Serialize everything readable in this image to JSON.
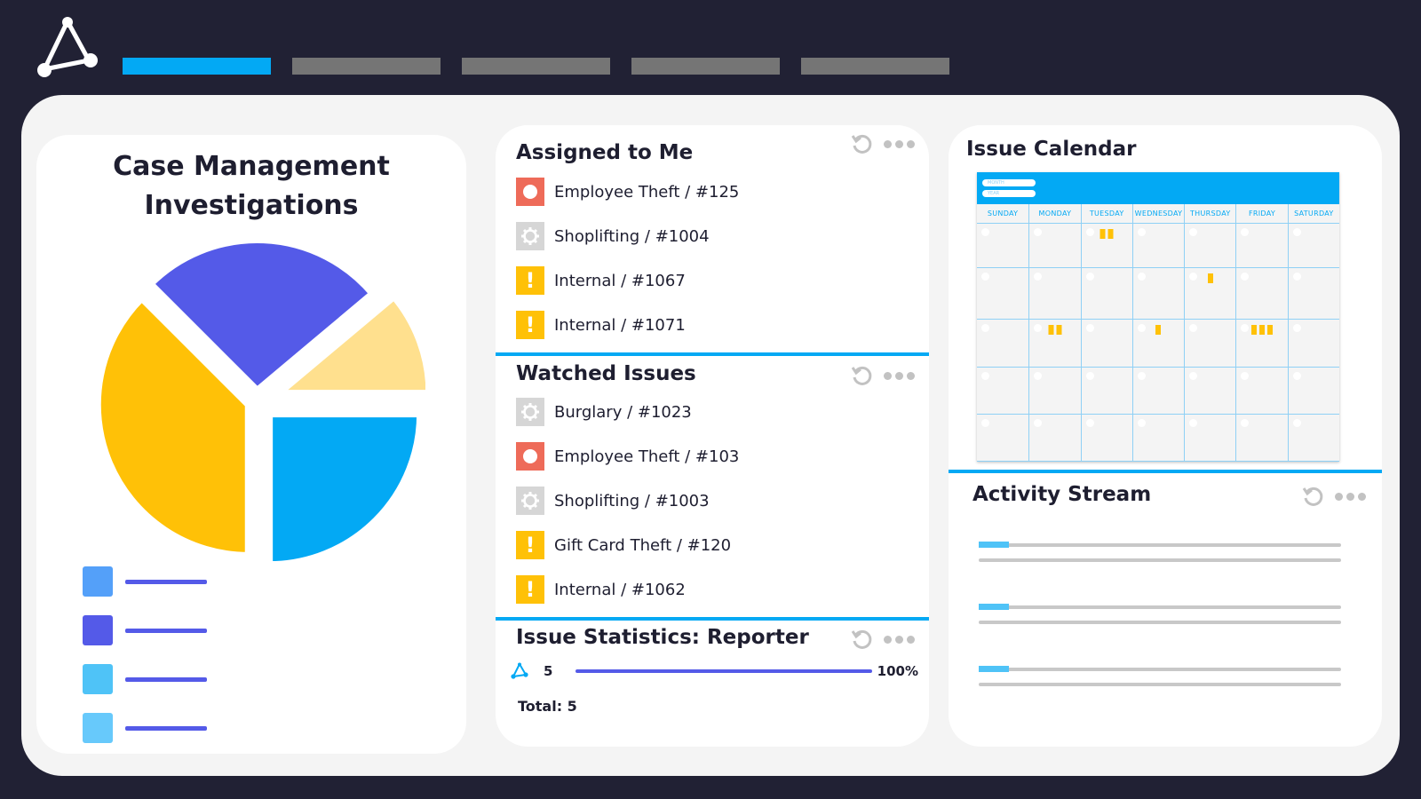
{
  "nav": {
    "tabs": [
      {
        "state": "active"
      },
      {
        "state": "inactive"
      },
      {
        "state": "inactive"
      },
      {
        "state": "inactive"
      },
      {
        "state": "inactive"
      }
    ]
  },
  "case_management": {
    "title_line1": "Case Management",
    "title_line2": "Investigations",
    "pie_colors": [
      "#545ae8",
      "#ffe08e",
      "#03a9f4",
      "#ffc107"
    ],
    "legend_colors": [
      "#54a0f9",
      "#545ae8",
      "#4fc3f7",
      "#67c9fb"
    ]
  },
  "assigned": {
    "title": "Assigned to Me",
    "items": [
      {
        "icon": "red",
        "label": "Employee Theft  / #125"
      },
      {
        "icon": "gray",
        "label": "Shoplifting  / #1004"
      },
      {
        "icon": "yellow",
        "label": "Internal / #1067"
      },
      {
        "icon": "yellow",
        "label": "Internal / #1071"
      }
    ]
  },
  "watched": {
    "title": "Watched Issues",
    "items": [
      {
        "icon": "gray",
        "label": "Burglary  / #1023"
      },
      {
        "icon": "red",
        "label": "Employee Theft  / #103"
      },
      {
        "icon": "gray",
        "label": "Shoplifting  / #1003"
      },
      {
        "icon": "yellow",
        "label": "Gift Card Theft / #120"
      },
      {
        "icon": "yellow",
        "label": "Internal / #1062"
      }
    ]
  },
  "stats": {
    "title": "Issue Statistics: Reporter",
    "count": "5",
    "percent": "100%",
    "progress": 1.0,
    "total": "Total: 5"
  },
  "calendar": {
    "title": "Issue Calendar",
    "month_label": "MONTH",
    "year_label": "YEAR",
    "days": [
      "SUNDAY",
      "MONDAY",
      "TUESDAY",
      "WEDNESDAY",
      "THURSDAY",
      "FRIDAY",
      "SATURDAY"
    ],
    "events": [
      {
        "week": 0,
        "day": 2,
        "count": 2
      },
      {
        "week": 1,
        "day": 4,
        "count": 1
      },
      {
        "week": 2,
        "day": 1,
        "count": 2
      },
      {
        "week": 2,
        "day": 3,
        "count": 1
      },
      {
        "week": 2,
        "day": 5,
        "count": 3
      }
    ]
  },
  "activity": {
    "title": "Activity Stream"
  },
  "icon_glyphs": {
    "warning": "!"
  }
}
